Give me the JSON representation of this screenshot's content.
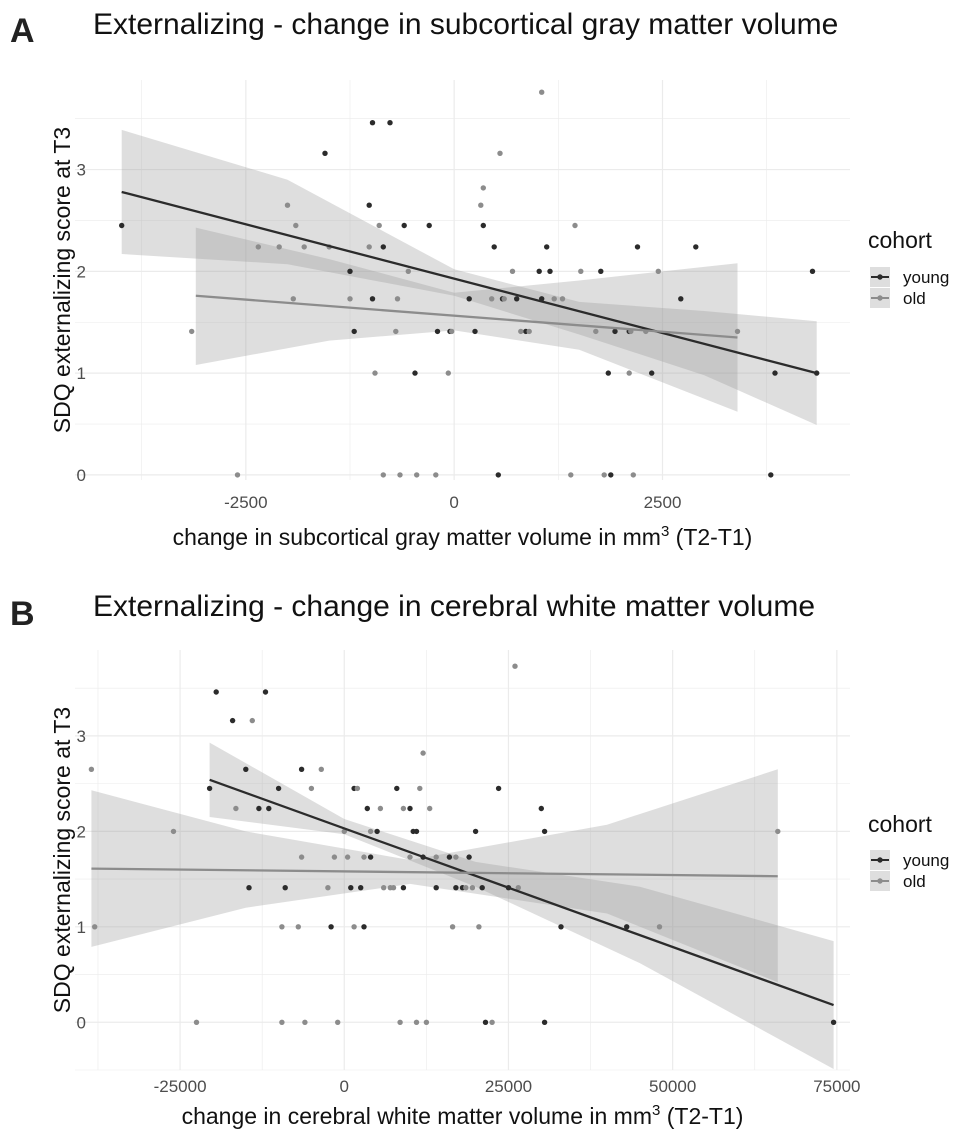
{
  "chart_data": [
    {
      "type": "scatter",
      "panel_label": "A",
      "title": "Externalizing - change in subcortical gray matter volume",
      "xlabel_prefix": "change in subcortical gray matter volume in mm",
      "xlabel_sup": "3",
      "xlabel_suffix": " (T2-T1)",
      "ylabel": "SDQ externalizing score at T3",
      "xlim": [
        -4550,
        4750
      ],
      "ylim": [
        -0.05,
        3.88
      ],
      "x_ticks": [
        -2500,
        0,
        2500
      ],
      "x_tick_labels": [
        "-2500",
        "0",
        "2500"
      ],
      "y_ticks": [
        0,
        1,
        2,
        3
      ],
      "y_tick_labels": [
        "0",
        "1",
        "2",
        "3"
      ],
      "grid": true,
      "legend": {
        "title": "cohort",
        "placement": "right",
        "entries": [
          {
            "label": "young",
            "color": "#2b2b2b"
          },
          {
            "label": "old",
            "color": "#8c8c8c"
          }
        ]
      },
      "series": [
        {
          "name": "young",
          "color": "#2b2b2b",
          "fit": {
            "x": [
              -3990,
              4350
            ],
            "y": [
              2.78,
              1.0
            ]
          },
          "ci": {
            "x": [
              -3990,
              -2000,
              0,
              1500,
              3000,
              4350
            ],
            "lower": [
              2.17,
              2.07,
              1.76,
              1.38,
              0.98,
              0.49
            ],
            "upper": [
              3.39,
              2.9,
              2.02,
              1.7,
              1.61,
              1.51
            ]
          },
          "points": [
            [
              -3990,
              2.45
            ],
            [
              -1550,
              3.16
            ],
            [
              -1250,
              2.0
            ],
            [
              -1020,
              2.65
            ],
            [
              -980,
              3.46
            ],
            [
              -770,
              3.46
            ],
            [
              -1200,
              1.41
            ],
            [
              -980,
              1.73
            ],
            [
              -600,
              2.45
            ],
            [
              -850,
              2.24
            ],
            [
              -300,
              2.45
            ],
            [
              -470,
              1.0
            ],
            [
              -200,
              1.41
            ],
            [
              -50,
              1.41
            ],
            [
              180,
              1.73
            ],
            [
              250,
              1.41
            ],
            [
              350,
              2.45
            ],
            [
              480,
              2.24
            ],
            [
              580,
              1.73
            ],
            [
              750,
              1.73
            ],
            [
              860,
              1.41
            ],
            [
              1020,
              2.0
            ],
            [
              1050,
              1.73
            ],
            [
              1110,
              2.24
            ],
            [
              1150,
              2.0
            ],
            [
              1760,
              2.0
            ],
            [
              1850,
              1.0
            ],
            [
              1930,
              1.41
            ],
            [
              2100,
              1.41
            ],
            [
              2200,
              2.24
            ],
            [
              2370,
              1.0
            ],
            [
              2720,
              1.73
            ],
            [
              2900,
              2.24
            ],
            [
              3800,
              0.0
            ],
            [
              3850,
              1.0
            ],
            [
              4300,
              2.0
            ],
            [
              4350,
              1.0
            ],
            [
              530,
              0.0
            ],
            [
              1880,
              0.0
            ]
          ]
        },
        {
          "name": "old",
          "color": "#8c8c8c",
          "fit": {
            "x": [
              -3100,
              3400
            ],
            "y": [
              1.76,
              1.35
            ]
          },
          "ci": {
            "x": [
              -3100,
              -1500,
              0,
              1500,
              3400
            ],
            "lower": [
              1.08,
              1.32,
              1.42,
              1.23,
              0.62
            ],
            "upper": [
              2.43,
              2.12,
              1.79,
              1.91,
              2.08
            ]
          },
          "points": [
            [
              -3150,
              1.41
            ],
            [
              -2600,
              0.0
            ],
            [
              -2350,
              2.24
            ],
            [
              -2100,
              2.24
            ],
            [
              -2000,
              2.65
            ],
            [
              -1930,
              1.73
            ],
            [
              -1900,
              2.45
            ],
            [
              -1800,
              2.24
            ],
            [
              -1500,
              2.24
            ],
            [
              -1250,
              1.73
            ],
            [
              -1020,
              2.24
            ],
            [
              -950,
              1.0
            ],
            [
              -900,
              2.45
            ],
            [
              -850,
              0.0
            ],
            [
              -700,
              1.41
            ],
            [
              -680,
              1.73
            ],
            [
              -650,
              0.0
            ],
            [
              -550,
              2.0
            ],
            [
              -450,
              0.0
            ],
            [
              -220,
              0.0
            ],
            [
              -70,
              1.0
            ],
            [
              -30,
              1.41
            ],
            [
              320,
              2.65
            ],
            [
              350,
              2.82
            ],
            [
              450,
              1.73
            ],
            [
              550,
              3.16
            ],
            [
              600,
              1.73
            ],
            [
              700,
              2.0
            ],
            [
              800,
              1.41
            ],
            [
              900,
              1.41
            ],
            [
              1050,
              3.76
            ],
            [
              1200,
              1.73
            ],
            [
              1300,
              1.73
            ],
            [
              1400,
              0.0
            ],
            [
              1450,
              2.45
            ],
            [
              1520,
              2.0
            ],
            [
              1700,
              1.41
            ],
            [
              1800,
              0.0
            ],
            [
              2100,
              1.0
            ],
            [
              2120,
              1.41
            ],
            [
              2150,
              0.0
            ],
            [
              2300,
              1.41
            ],
            [
              2450,
              2.0
            ],
            [
              3400,
              1.41
            ]
          ]
        }
      ]
    },
    {
      "type": "scatter",
      "panel_label": "B",
      "title": "Externalizing - change in cerebral white matter volume",
      "xlabel_prefix": "change in cerebral white matter volume in mm",
      "xlabel_sup": "3",
      "xlabel_suffix": " (T2-T1)",
      "ylabel": "SDQ externalizing score at T3",
      "xlim": [
        -41000,
        77000
      ],
      "ylim": [
        -0.5,
        3.9
      ],
      "x_ticks": [
        -25000,
        0,
        25000,
        50000,
        75000
      ],
      "x_tick_labels": [
        "-25000",
        "0",
        "25000",
        "50000",
        "75000"
      ],
      "y_ticks": [
        0,
        1,
        2,
        3
      ],
      "y_tick_labels": [
        "0",
        "1",
        "2",
        "3"
      ],
      "grid": true,
      "legend": {
        "title": "cohort",
        "placement": "right",
        "entries": [
          {
            "label": "young",
            "color": "#2b2b2b"
          },
          {
            "label": "old",
            "color": "#8c8c8c"
          }
        ]
      },
      "series": [
        {
          "name": "young",
          "color": "#2b2b2b",
          "fit": {
            "x": [
              -20500,
              74500
            ],
            "y": [
              2.54,
              0.18
            ]
          },
          "ci": {
            "x": [
              -20500,
              0,
              20000,
              45000,
              74500
            ],
            "lower": [
              2.15,
              1.97,
              1.42,
              0.62,
              -0.49
            ],
            "upper": [
              2.93,
              2.13,
              1.68,
              1.42,
              0.85
            ]
          },
          "points": [
            [
              -20500,
              2.45
            ],
            [
              -19500,
              3.46
            ],
            [
              -17000,
              3.16
            ],
            [
              -15000,
              2.65
            ],
            [
              -14500,
              1.41
            ],
            [
              -13000,
              2.24
            ],
            [
              -12000,
              3.46
            ],
            [
              -11500,
              2.24
            ],
            [
              -10000,
              2.45
            ],
            [
              -9000,
              1.41
            ],
            [
              -6500,
              2.65
            ],
            [
              -2000,
              1.0
            ],
            [
              1000,
              1.41
            ],
            [
              1500,
              2.45
            ],
            [
              2500,
              1.41
            ],
            [
              3000,
              1.0
            ],
            [
              3500,
              2.24
            ],
            [
              4000,
              1.73
            ],
            [
              5000,
              2.0
            ],
            [
              8000,
              2.45
            ],
            [
              9000,
              1.41
            ],
            [
              10000,
              2.24
            ],
            [
              10500,
              2.0
            ],
            [
              11000,
              2.0
            ],
            [
              12000,
              1.73
            ],
            [
              14000,
              1.41
            ],
            [
              16000,
              1.73
            ],
            [
              17000,
              1.41
            ],
            [
              18000,
              1.41
            ],
            [
              19000,
              1.73
            ],
            [
              20000,
              2.0
            ],
            [
              21000,
              1.41
            ],
            [
              21500,
              0.0
            ],
            [
              23500,
              2.45
            ],
            [
              25000,
              1.41
            ],
            [
              30000,
              2.24
            ],
            [
              30500,
              2.0
            ],
            [
              30500,
              0.0
            ],
            [
              33000,
              1.0
            ],
            [
              43000,
              1.0
            ],
            [
              74500,
              0.0
            ]
          ]
        },
        {
          "name": "old",
          "color": "#8c8c8c",
          "fit": {
            "x": [
              -38500,
              66000
            ],
            "y": [
              1.61,
              1.53
            ]
          },
          "ci": {
            "x": [
              -38500,
              -15000,
              10000,
              40000,
              66000
            ],
            "lower": [
              0.79,
              1.2,
              1.45,
              1.14,
              0.42
            ],
            "upper": [
              2.43,
              2.0,
              1.7,
              2.07,
              2.65
            ]
          },
          "points": [
            [
              -38500,
              2.65
            ],
            [
              -38000,
              1.0
            ],
            [
              -26000,
              2.0
            ],
            [
              -22500,
              0.0
            ],
            [
              -16500,
              2.24
            ],
            [
              -14000,
              3.16
            ],
            [
              -9500,
              1.0
            ],
            [
              -9500,
              0.0
            ],
            [
              -7000,
              1.0
            ],
            [
              -6500,
              1.73
            ],
            [
              -6000,
              0.0
            ],
            [
              -5000,
              2.45
            ],
            [
              -3500,
              2.65
            ],
            [
              -2500,
              1.41
            ],
            [
              -1500,
              1.73
            ],
            [
              -1000,
              0.0
            ],
            [
              0,
              2.0
            ],
            [
              500,
              1.73
            ],
            [
              1500,
              1.0
            ],
            [
              2000,
              2.45
            ],
            [
              3000,
              1.73
            ],
            [
              4000,
              2.0
            ],
            [
              5500,
              2.24
            ],
            [
              6000,
              1.41
            ],
            [
              7000,
              1.41
            ],
            [
              7500,
              1.41
            ],
            [
              8500,
              0.0
            ],
            [
              9000,
              2.24
            ],
            [
              10000,
              1.73
            ],
            [
              11000,
              0.0
            ],
            [
              11500,
              2.45
            ],
            [
              12000,
              2.82
            ],
            [
              12500,
              0.0
            ],
            [
              13000,
              2.24
            ],
            [
              14000,
              1.73
            ],
            [
              16500,
              1.0
            ],
            [
              17000,
              1.73
            ],
            [
              18500,
              1.41
            ],
            [
              19500,
              1.41
            ],
            [
              20500,
              1.0
            ],
            [
              22500,
              0.0
            ],
            [
              26000,
              3.73
            ],
            [
              26500,
              1.41
            ],
            [
              48000,
              1.0
            ],
            [
              66000,
              2.0
            ]
          ]
        }
      ]
    }
  ]
}
